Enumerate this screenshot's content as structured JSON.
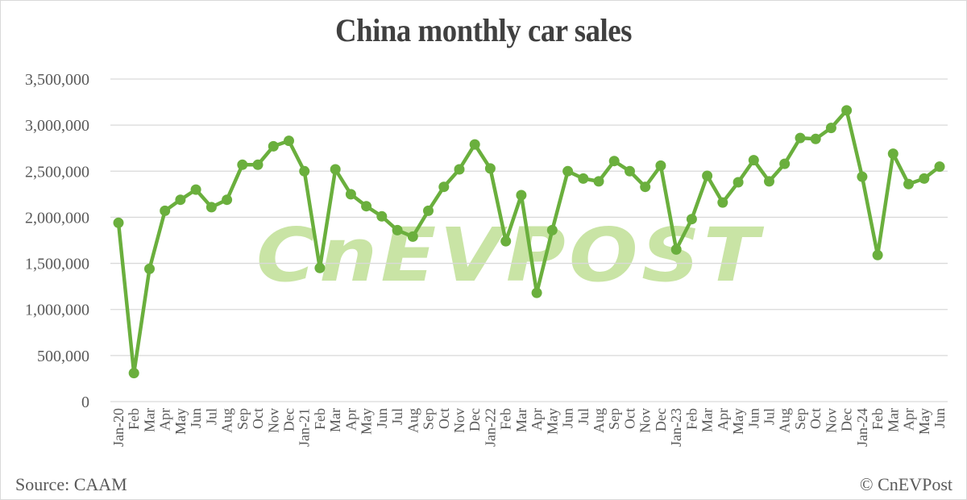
{
  "title": "China monthly car sales",
  "footer": {
    "source": "Source: CAAM",
    "copyright": "© CnEVPost"
  },
  "watermark": "CnEVPOST",
  "colors": {
    "line": "#6aaf3d",
    "marker": "#6aaf3d",
    "watermark": "#a6d36a",
    "grid": "#d9d9d9",
    "text": "#595959",
    "title": "#404040"
  },
  "chart_data": {
    "type": "line",
    "title": "China monthly car sales",
    "xlabel": "",
    "ylabel": "",
    "ylim": [
      0,
      3500000
    ],
    "yticks": [
      0,
      500000,
      1000000,
      1500000,
      2000000,
      2500000,
      3000000,
      3500000
    ],
    "ytick_labels": [
      "0",
      "500,000",
      "1,000,000",
      "1,500,000",
      "2,000,000",
      "2,500,000",
      "3,000,000",
      "3,500,000"
    ],
    "grid": true,
    "legend": null,
    "categories": [
      "Jan-20",
      "Feb",
      "Mar",
      "Apr",
      "May",
      "Jun",
      "Jul",
      "Aug",
      "Sep",
      "Oct",
      "Nov",
      "Dec",
      "Jan-21",
      "Feb",
      "Mar",
      "Apr",
      "May",
      "Jun",
      "Jul",
      "Aug",
      "Sep",
      "Oct",
      "Nov",
      "Dec",
      "Jan-22",
      "Feb",
      "Mar",
      "Apr",
      "May",
      "Jun",
      "Jul",
      "Aug",
      "Sep",
      "Oct",
      "Nov",
      "Dec",
      "Jan-23",
      "Feb",
      "Mar",
      "Apr",
      "May",
      "Jun",
      "Jul",
      "Aug",
      "Sep",
      "Oct",
      "Nov",
      "Dec",
      "Jan-24",
      "Feb",
      "Mar",
      "Apr",
      "May",
      "Jun"
    ],
    "series": [
      {
        "name": "Car sales",
        "values": [
          1940000,
          310000,
          1440000,
          2070000,
          2190000,
          2300000,
          2110000,
          2190000,
          2570000,
          2570000,
          2770000,
          2830000,
          2500000,
          1450000,
          2520000,
          2250000,
          2120000,
          2010000,
          1860000,
          1790000,
          2070000,
          2330000,
          2520000,
          2790000,
          2530000,
          1740000,
          2240000,
          1180000,
          1860000,
          2500000,
          2420000,
          2390000,
          2610000,
          2500000,
          2330000,
          2560000,
          1650000,
          1980000,
          2450000,
          2160000,
          2380000,
          2620000,
          2390000,
          2580000,
          2860000,
          2850000,
          2970000,
          3160000,
          2440000,
          1590000,
          2690000,
          2360000,
          2420000,
          2550000
        ]
      }
    ]
  }
}
